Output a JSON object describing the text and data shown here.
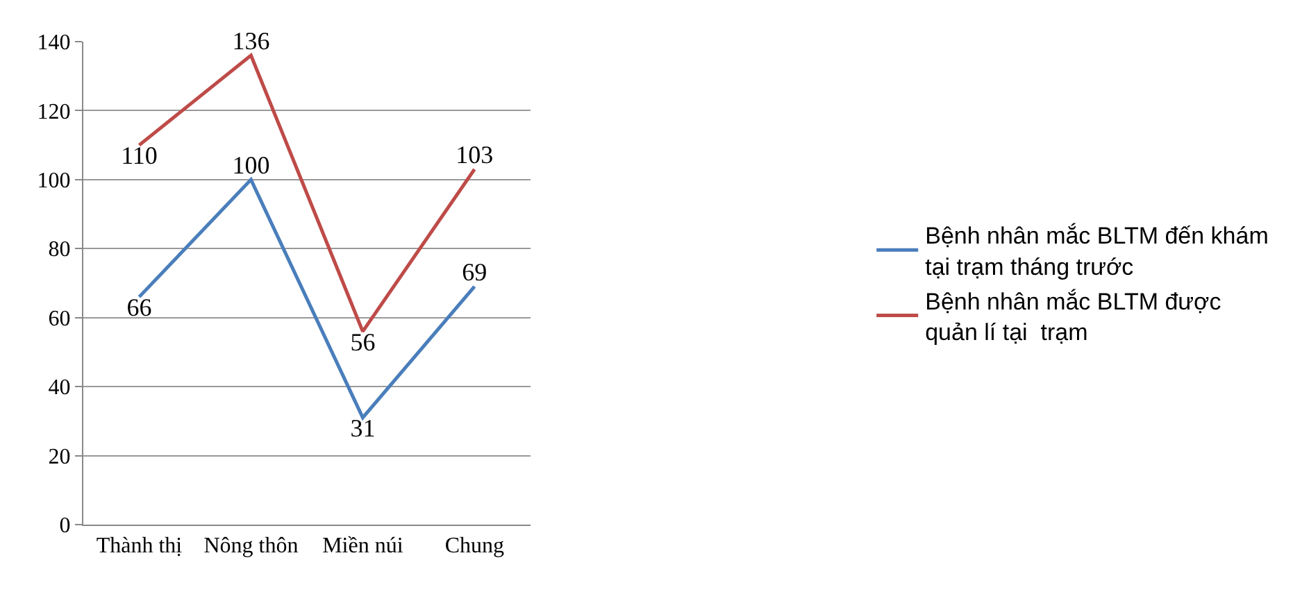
{
  "chart_data": {
    "type": "line",
    "categories": [
      "Thành thị",
      "Nông thôn",
      "Miền núi",
      "Chung"
    ],
    "series": [
      {
        "name": "Bệnh nhân mắc BLTM đến khám tại trạm tháng trước",
        "color": "#4a7ebb",
        "values": [
          66,
          100,
          31,
          69
        ]
      },
      {
        "name": "Bệnh nhân mắc BLTM được quản lí tại  trạm",
        "color": "#be4b48",
        "values": [
          110,
          136,
          56,
          103
        ]
      }
    ],
    "ylim": [
      0,
      140
    ],
    "yticks": [
      0,
      20,
      40,
      60,
      80,
      100,
      120,
      140
    ],
    "grid": "y",
    "legend": "right",
    "data_labels": true,
    "marker": "none",
    "line_style": "solid"
  }
}
